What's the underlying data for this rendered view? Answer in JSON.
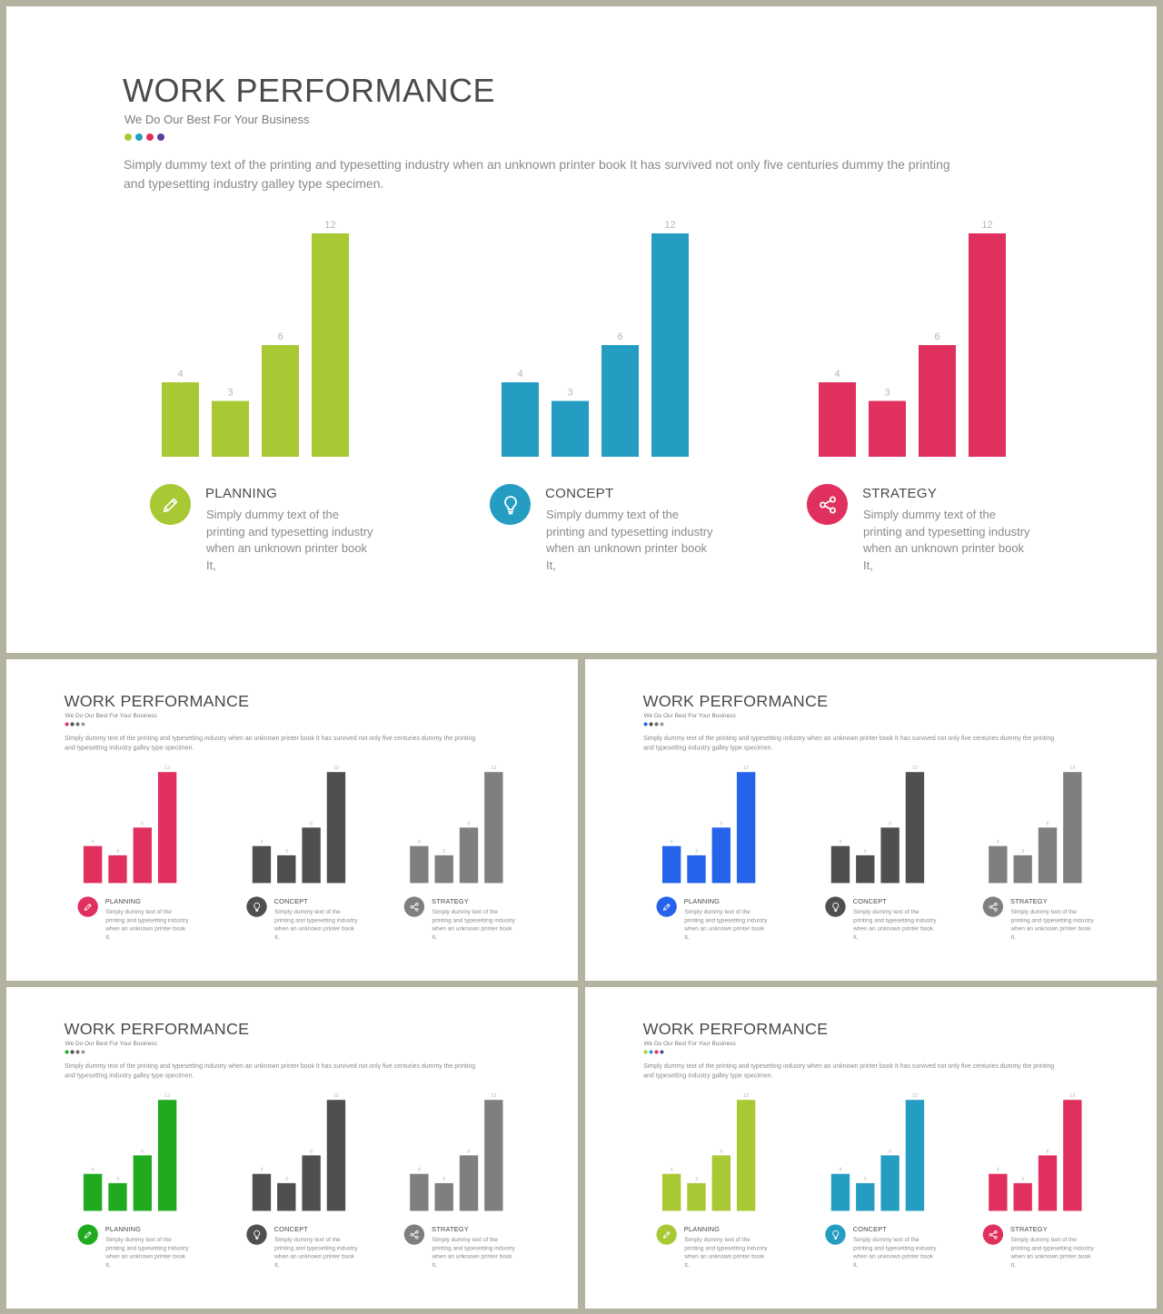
{
  "slides": [
    {
      "title": "WORK PERFORMANCE",
      "subtitle": "We Do Our Best For Your Business",
      "dot_colors": [
        "#a8c934",
        "#259dc3",
        "#e0305e",
        "#5c3d99"
      ],
      "intro": "Simply dummy text of the printing and typesetting industry when an unknown printer book It has survived not only five centuries dummy the printing and typesetting industry galley type specimen.",
      "groups": [
        {
          "title": "PLANNING",
          "desc": "Simply dummy text of the printing and typesetting industry when an unknown printer book It,",
          "icon": "pencil-icon",
          "color": "#a8c934"
        },
        {
          "title": "CONCEPT",
          "desc": "Simply dummy text of the printing and typesetting industry when an unknown printer book It,",
          "icon": "lightbulb-icon",
          "color": "#259dc3"
        },
        {
          "title": "STRATEGY",
          "desc": "Simply dummy text of the printing and typesetting industry when an unknown printer book It,",
          "icon": "share-icon",
          "color": "#e0305e"
        }
      ]
    },
    {
      "title": "WORK PERFORMANCE",
      "subtitle": "We Do Our Best For Your Business",
      "dot_colors": [
        "#e0305e",
        "#4a4a4a",
        "#6e6e6e",
        "#9a9a9a"
      ],
      "intro": "Simply dummy text of the printing and typesetting industry when an unknown printer book It has survived not only five centuries dummy the printing and typesetting industry galley type specimen.",
      "groups": [
        {
          "title": "PLANNING",
          "desc": "Simply dummy text of the printing and typesetting industry when an unknown printer book It,",
          "icon": "pencil-icon",
          "color": "#e0305e"
        },
        {
          "title": "CONCEPT",
          "desc": "Simply dummy text of the printing and typesetting industry when an unknown printer book It,",
          "icon": "lightbulb-icon",
          "color": "#4f4f4f"
        },
        {
          "title": "STRATEGY",
          "desc": "Simply dummy text of the printing and typesetting industry when an unknown printer book It,",
          "icon": "share-icon",
          "color": "#7f7f7f"
        }
      ]
    },
    {
      "title": "WORK PERFORMANCE",
      "subtitle": "We Do Our Best For Your Business",
      "dot_colors": [
        "#2563eb",
        "#4a4a4a",
        "#6e6e6e",
        "#9a9a9a"
      ],
      "intro": "Simply dummy text of the printing and typesetting industry when an unknown printer book It has survived not only five centuries dummy the printing and typesetting industry galley type specimen.",
      "groups": [
        {
          "title": "PLANNING",
          "desc": "Simply dummy text of the printing and typesetting industry when an unknown printer book It,",
          "icon": "pencil-icon",
          "color": "#2563eb"
        },
        {
          "title": "CONCEPT",
          "desc": "Simply dummy text of the printing and typesetting industry when an unknown printer book It,",
          "icon": "lightbulb-icon",
          "color": "#4f4f4f"
        },
        {
          "title": "STRATEGY",
          "desc": "Simply dummy text of the printing and typesetting industry when an unknown printer book It,",
          "icon": "share-icon",
          "color": "#7f7f7f"
        }
      ]
    },
    {
      "title": "WORK PERFORMANCE",
      "subtitle": "We Do Our Best For Your Business",
      "dot_colors": [
        "#1faa1f",
        "#4a4a4a",
        "#6e6e6e",
        "#9a9a9a"
      ],
      "intro": "Simply dummy text of the printing and typesetting industry when an unknown printer book It has survived not only five centuries dummy the printing and typesetting industry galley type specimen.",
      "groups": [
        {
          "title": "PLANNING",
          "desc": "Simply dummy text of the printing and typesetting industry when an unknown printer book It,",
          "icon": "pencil-icon",
          "color": "#1faa1f"
        },
        {
          "title": "CONCEPT",
          "desc": "Simply dummy text of the printing and typesetting industry when an unknown printer book It,",
          "icon": "lightbulb-icon",
          "color": "#4f4f4f"
        },
        {
          "title": "STRATEGY",
          "desc": "Simply dummy text of the printing and typesetting industry when an unknown printer book It,",
          "icon": "share-icon",
          "color": "#7f7f7f"
        }
      ]
    },
    {
      "title": "WORK PERFORMANCE",
      "subtitle": "We Do Our Best For Your Business",
      "dot_colors": [
        "#a8c934",
        "#259dc3",
        "#e0305e",
        "#5c3d99"
      ],
      "intro": "Simply dummy text of the printing and typesetting industry when an unknown printer book It has survived not only five centuries dummy the printing and typesetting industry galley type specimen.",
      "groups": [
        {
          "title": "PLANNING",
          "desc": "Simply dummy text of the printing and typesetting industry when an unknown printer book It,",
          "icon": "pencil-icon",
          "color": "#a8c934"
        },
        {
          "title": "CONCEPT",
          "desc": "Simply dummy text of the printing and typesetting industry when an unknown printer book It,",
          "icon": "lightbulb-icon",
          "color": "#259dc3"
        },
        {
          "title": "STRATEGY",
          "desc": "Simply dummy text of the printing and typesetting industry when an unknown printer book It,",
          "icon": "share-icon",
          "color": "#e0305e"
        }
      ]
    }
  ],
  "chart_data": {
    "type": "bar",
    "values": [
      4,
      3,
      6,
      12
    ],
    "ylim": [
      0,
      12
    ]
  }
}
